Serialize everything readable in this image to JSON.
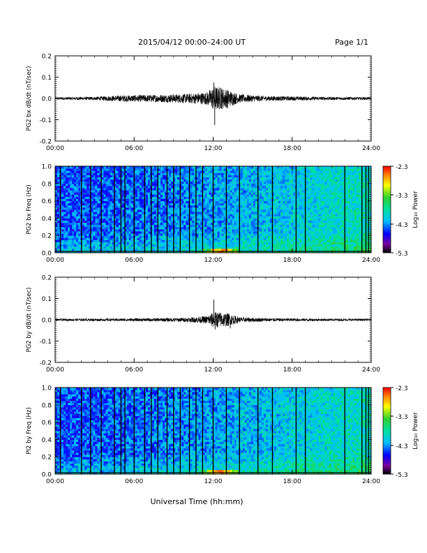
{
  "header": {
    "title": "2015/04/12  00:00–24:00 UT",
    "page": "Page 1/1"
  },
  "xaxis_label": "Universal Time (hh:mm)",
  "time_ticks": [
    "00:00",
    "06:00",
    "12:00",
    "18:00",
    "24:00"
  ],
  "colorbar": {
    "label": "Log₁₀ Power",
    "ticks": [
      "-2.3",
      "-3.3",
      "-4.3",
      "-5.3"
    ]
  },
  "chart_data": [
    {
      "type": "line",
      "ylabel": "PG2 bx dB/dt (nT/sec)",
      "xlim": [
        0,
        24
      ],
      "ylim": [
        -0.2,
        0.2
      ],
      "ytick_labels": [
        "0.2",
        "0.1",
        "0.0",
        "-0.1",
        "-0.2"
      ],
      "x_unit": "hours UT",
      "envelope": [
        {
          "x": 0,
          "amp": 0.006
        },
        {
          "x": 3,
          "amp": 0.008
        },
        {
          "x": 5,
          "amp": 0.015
        },
        {
          "x": 8,
          "amp": 0.018
        },
        {
          "x": 10,
          "amp": 0.022
        },
        {
          "x": 11.5,
          "amp": 0.03
        },
        {
          "x": 12.1,
          "amp": 0.06
        },
        {
          "x": 13,
          "amp": 0.045
        },
        {
          "x": 14,
          "amp": 0.02
        },
        {
          "x": 16,
          "amp": 0.012
        },
        {
          "x": 20,
          "amp": 0.008
        },
        {
          "x": 24,
          "amp": 0.006
        }
      ],
      "spikes": [
        {
          "x": 12.05,
          "y": 0.075
        },
        {
          "x": 12.12,
          "y": -0.125
        },
        {
          "x": 12.6,
          "y": 0.05
        },
        {
          "x": 13.1,
          "y": -0.045
        }
      ]
    },
    {
      "type": "heatmap",
      "ylabel": "PG2 bx Freq (Hz)",
      "xlim": [
        0,
        24
      ],
      "ylim": [
        0.0,
        1.0
      ],
      "ytick_labels": [
        "1.0",
        "0.8",
        "0.6",
        "0.4",
        "0.2",
        "0.0"
      ],
      "zlim": [
        -5.3,
        -2.3
      ],
      "data_gap_hours": [
        0.4,
        2.0,
        2.7,
        3.5,
        4.5,
        5.0,
        5.3,
        6.0,
        6.8,
        7.3,
        7.8,
        8.5,
        9.0,
        9.5,
        10.2,
        10.7,
        11.2,
        12.0,
        13.0,
        14.0,
        15.4,
        16.5,
        18.3,
        19.0,
        22.0,
        23.3,
        23.6,
        23.8
      ]
    },
    {
      "type": "line",
      "ylabel": "PG2 by dB/dt (nT/sec)",
      "xlim": [
        0,
        24
      ],
      "ylim": [
        -0.2,
        0.2
      ],
      "ytick_labels": [
        "0.2",
        "0.1",
        "0.0",
        "-0.1",
        "-0.2"
      ],
      "x_unit": "hours UT",
      "envelope": [
        {
          "x": 0,
          "amp": 0.005
        },
        {
          "x": 4,
          "amp": 0.006
        },
        {
          "x": 8,
          "amp": 0.008
        },
        {
          "x": 10,
          "amp": 0.01
        },
        {
          "x": 11.5,
          "amp": 0.018
        },
        {
          "x": 12.1,
          "amp": 0.04
        },
        {
          "x": 13.2,
          "amp": 0.03
        },
        {
          "x": 14,
          "amp": 0.012
        },
        {
          "x": 16,
          "amp": 0.008
        },
        {
          "x": 20,
          "amp": 0.006
        },
        {
          "x": 24,
          "amp": 0.005
        }
      ],
      "spikes": [
        {
          "x": 12.05,
          "y": 0.095
        },
        {
          "x": 12.15,
          "y": -0.045
        },
        {
          "x": 13.3,
          "y": -0.04
        }
      ]
    },
    {
      "type": "heatmap",
      "ylabel": "PI2 by Freq (Hz)",
      "xlim": [
        0,
        24
      ],
      "ylim": [
        0.0,
        1.0
      ],
      "ytick_labels": [
        "1.0",
        "0.8",
        "0.6",
        "0.4",
        "0.2",
        "0.0"
      ],
      "zlim": [
        -5.3,
        -2.3
      ],
      "data_gap_hours": [
        0.4,
        2.0,
        2.7,
        3.5,
        4.5,
        5.0,
        5.3,
        6.0,
        6.8,
        7.3,
        7.8,
        8.5,
        9.0,
        9.5,
        10.2,
        10.7,
        11.2,
        12.0,
        13.0,
        14.0,
        15.4,
        16.5,
        18.3,
        19.0,
        22.0,
        23.3,
        23.6,
        23.8
      ]
    }
  ]
}
